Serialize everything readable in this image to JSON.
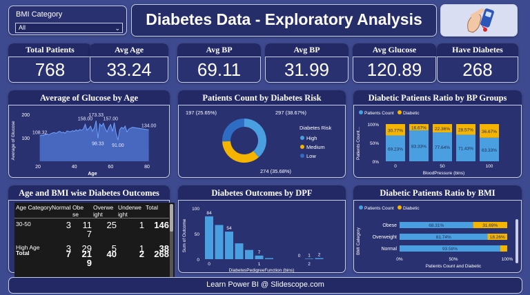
{
  "slicer": {
    "label": "BMI Category",
    "value": "All"
  },
  "header": {
    "title": "Diabetes Data - Exploratory Analysis"
  },
  "kpis": [
    {
      "title": "Total Patients",
      "value": "768"
    },
    {
      "title": "Avg Age",
      "value": "33.24"
    },
    {
      "title": "Avg BP",
      "value": "69.11"
    },
    {
      "title": "Avg BP",
      "value": "31.99"
    },
    {
      "title": "Avg Glucose",
      "value": "120.89"
    },
    {
      "title": "Have Diabetes",
      "value": "268"
    }
  ],
  "panels": {
    "glucose_age": "Average of Glucose by Age",
    "risk": "Patients Count by Diabetes Risk",
    "bp_groups": "Diabetic Patients Ratio by BP Groups",
    "matrix": "Age and BMI wise Diabetes Outcomes",
    "dpf": "Diabetes Outcomes by DPF",
    "bmi": "Diabetic Patients Ratio by BMI"
  },
  "chart_data": [
    {
      "type": "area",
      "title": "Average of Glucose by Age",
      "xlabel": "Age",
      "ylabel": "Average of Glucose",
      "xlim": [
        20,
        80
      ],
      "ylim": [
        0,
        200
      ],
      "x_ticks": [
        "20",
        "40",
        "60",
        "80"
      ],
      "y_ticks": [
        "100",
        "200"
      ],
      "x": [
        21,
        22,
        23,
        24,
        25,
        26,
        27,
        28,
        29,
        30,
        31,
        32,
        33,
        34,
        35,
        36,
        37,
        38,
        39,
        40,
        41,
        42,
        43,
        44,
        45,
        46,
        47,
        48,
        49,
        50,
        51,
        52,
        53,
        54,
        55,
        56,
        57,
        58,
        59,
        60,
        61,
        62,
        63,
        64,
        65,
        66,
        67,
        68,
        69,
        70,
        72,
        81
      ],
      "values": [
        108,
        112,
        110,
        115,
        117,
        113,
        118,
        121,
        123,
        119,
        125,
        128,
        122,
        124,
        120,
        130,
        127,
        126,
        131,
        128,
        134,
        129,
        136,
        132,
        138,
        158,
        133,
        140,
        150,
        128,
        142,
        173,
        98,
        160,
        150,
        162,
        140,
        125,
        145,
        157,
        127,
        165,
        120,
        91,
        135,
        145,
        140,
        150,
        125,
        138,
        145,
        134
      ],
      "labels": [
        "108.32",
        "158.00",
        "173.33",
        "157.00",
        "98.33",
        "91.00",
        "134.00"
      ]
    },
    {
      "type": "pie",
      "title": "Patients Count by Diabetes Risk",
      "legend_title": "Diabetes Risk",
      "categories": [
        "High",
        "Medium",
        "Low"
      ],
      "values": [
        297,
        274,
        197
      ],
      "labels": [
        "297 (38.67%)",
        "274 (35.68%)",
        "197 (25.65%)"
      ],
      "colors": [
        "#4a9fe0",
        "#f4b400",
        "#2f6dc4"
      ]
    },
    {
      "type": "bar",
      "title": "Diabetic Patients Ratio by BP Groups",
      "xlabel": "BloodPressure (bins)",
      "ylabel": "Patients Count...",
      "x_ticks": [
        "0",
        "50",
        "100"
      ],
      "y_ticks": [
        "0%",
        "50%",
        "100%"
      ],
      "legend": [
        "Patients Count",
        "Diabetic"
      ],
      "series": [
        {
          "name": "Patients Count",
          "values": [
            69.23,
            83.33,
            77.64,
            71.43,
            63.33
          ],
          "labels": [
            "69.23%",
            "83.33%",
            "77.64%",
            "71.43%",
            "63.33%"
          ]
        },
        {
          "name": "Diabetic",
          "values": [
            30.77,
            16.67,
            22.36,
            28.57,
            36.67
          ],
          "labels": [
            "30.77%",
            "16.67%",
            "22.36%",
            "28.57%",
            "36.67%"
          ]
        }
      ]
    },
    {
      "type": "table",
      "title": "Age and BMI wise Diabetes Outcomes",
      "columns": [
        "Age Category",
        "Normal",
        "Obese",
        "Overweight",
        "Underweight",
        "Total"
      ],
      "header_display": [
        "Age Category",
        "Normal",
        "Obe\nse",
        "Overwe\night",
        "Underwe\night",
        "Total"
      ],
      "rows": [
        [
          "30-50",
          "3",
          "11\n7",
          "25",
          "1",
          "146"
        ],
        [
          "High Age",
          "3",
          "29",
          "5",
          "1",
          "38"
        ],
        [
          "Total",
          "7",
          "21\n9",
          "40",
          "2",
          "268"
        ]
      ]
    },
    {
      "type": "bar",
      "title": "Diabetes Outcomes by DPF",
      "xlabel": "DiabetesPedigreeFunction (bins)",
      "ylabel": "Sum of Outcome",
      "ylim": [
        0,
        100
      ],
      "y_ticks": [
        "0",
        "50",
        "100"
      ],
      "x_ticks": [
        "0",
        "1",
        "2"
      ],
      "values": [
        84,
        67,
        54,
        31,
        18,
        7,
        2,
        0,
        0,
        0,
        1,
        2
      ],
      "labels": [
        "84",
        "",
        "54",
        "",
        "",
        "7",
        "",
        "",
        "",
        "0",
        "1",
        "2"
      ]
    },
    {
      "type": "bar",
      "title": "Diabetic Patients Ratio by BMI",
      "xlabel": "Patients Count and Diabetic",
      "ylabel": "BMI Category",
      "x_ticks": [
        "0%",
        "50%",
        "100%"
      ],
      "legend": [
        "Patients Count",
        "Diabetic"
      ],
      "categories": [
        "Obese",
        "Overweight",
        "Normal"
      ],
      "series": [
        {
          "name": "Patients Count",
          "values": [
            68.31,
            81.74,
            93.58
          ],
          "labels": [
            "68.31%",
            "81.74%",
            "93.58%"
          ]
        },
        {
          "name": "Diabetic",
          "values": [
            31.69,
            18.26,
            6.42
          ],
          "labels": [
            "31.69%",
            "18.26%",
            ""
          ]
        }
      ]
    }
  ],
  "footer": {
    "text": "Learn Power BI @ Slidescope.com"
  },
  "colors": {
    "background": "#3e4a8f",
    "card": "#2a3170",
    "blue": "#4a9fe0",
    "yellow": "#f4b400",
    "dark_blue": "#2f6dc4"
  },
  "icons": {
    "header": "diabetes-glucose-meter-icon"
  }
}
